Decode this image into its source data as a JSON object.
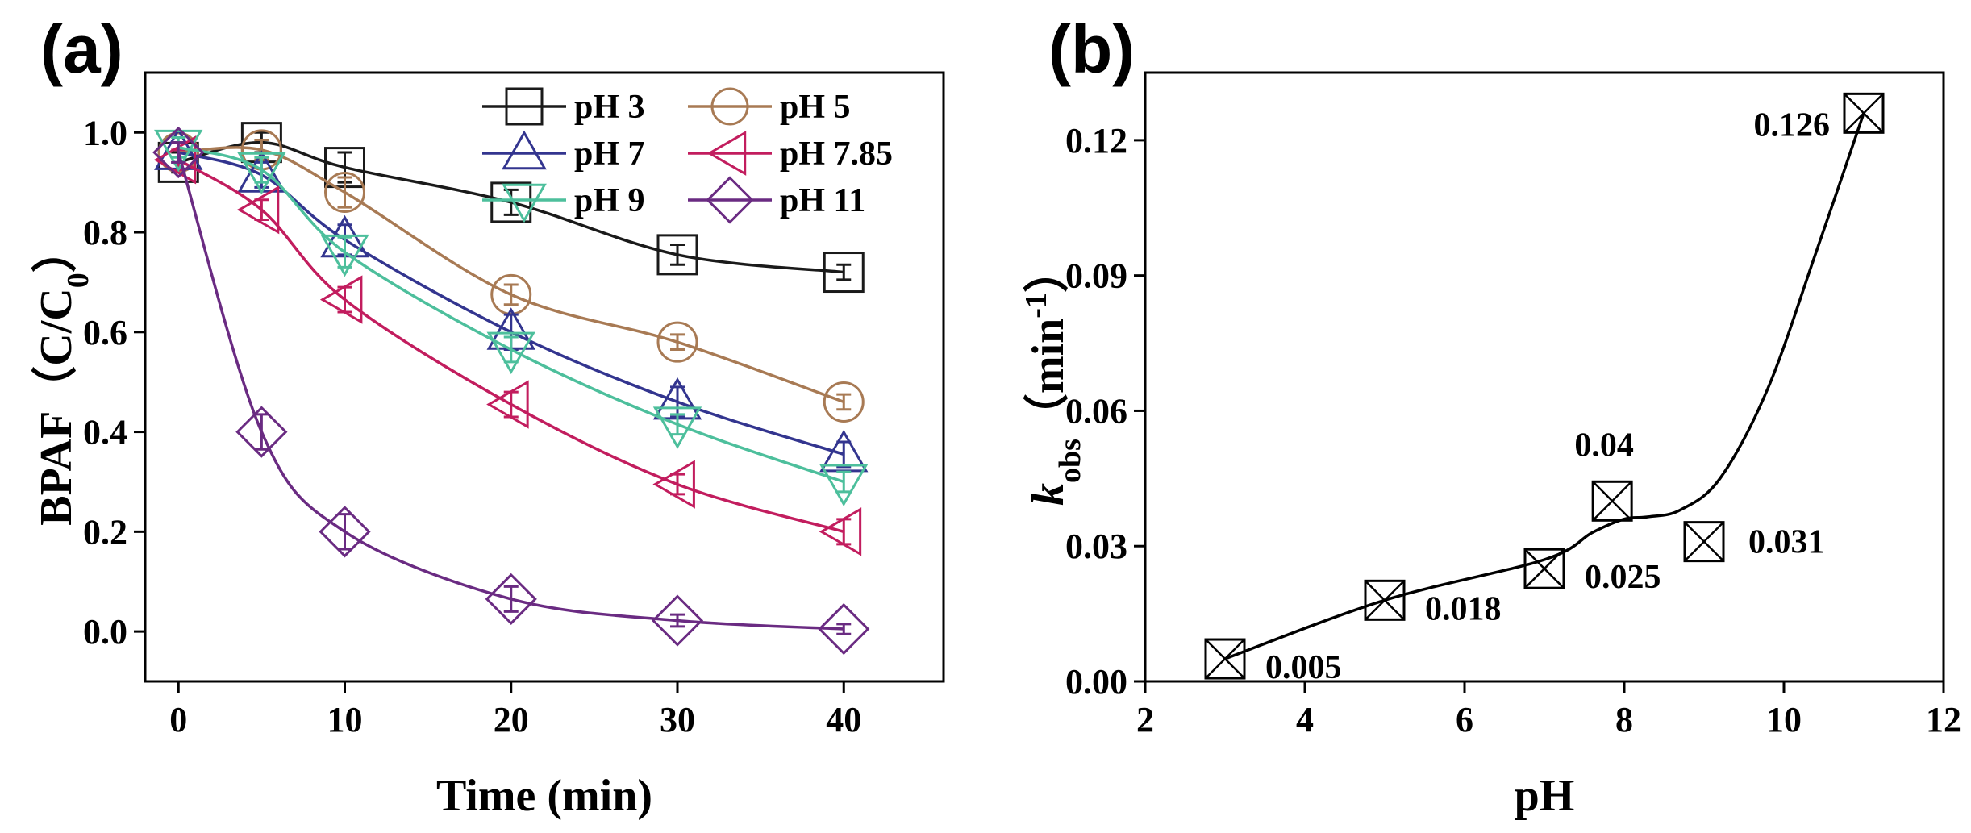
{
  "chart_data": [
    {
      "panel_label": "(a)",
      "type": "line",
      "xlabel": "Time (min)",
      "ylabel_main": "BPAF（C/C",
      "ylabel_sub": "0",
      "ylabel_tail": "）",
      "xlim": [
        -2,
        46
      ],
      "ylim": [
        -0.1,
        1.12
      ],
      "xticks": [
        0,
        10,
        20,
        30,
        40
      ],
      "xtick_labels": [
        "0",
        "10",
        "20",
        "30",
        "40"
      ],
      "yticks": [
        0.0,
        0.2,
        0.4,
        0.6,
        0.8,
        1.0
      ],
      "ytick_labels": [
        "0.0",
        "0.2",
        "0.4",
        "0.6",
        "0.8",
        "1.0"
      ],
      "legend_position": "top-right",
      "x": [
        0,
        5,
        10,
        20,
        30,
        40
      ],
      "series": [
        {
          "name": "pH 3",
          "marker": "square",
          "color": "#1a1a1a",
          "values": [
            0.94,
            0.98,
            0.93,
            0.86,
            0.755,
            0.72
          ],
          "errors": [
            0.02,
            0.02,
            0.03,
            0.025,
            0.02,
            0.015
          ]
        },
        {
          "name": "pH 5",
          "marker": "circle",
          "color": "#a87a54",
          "values": [
            0.96,
            0.965,
            0.88,
            0.675,
            0.58,
            0.46
          ],
          "errors": [
            0.02,
            0.02,
            0.03,
            0.02,
            0.015,
            0.015
          ]
        },
        {
          "name": "pH 7",
          "marker": "triangle-up",
          "color": "#33358f",
          "values": [
            0.96,
            0.915,
            0.785,
            0.6,
            0.46,
            0.355
          ],
          "errors": [
            0.02,
            0.025,
            0.03,
            0.035,
            0.03,
            0.025
          ]
        },
        {
          "name": "pH 7.85",
          "marker": "triangle-left",
          "color": "#c21d5e",
          "values": [
            0.945,
            0.845,
            0.665,
            0.455,
            0.295,
            0.2
          ],
          "errors": [
            0.02,
            0.02,
            0.025,
            0.025,
            0.02,
            0.025
          ]
        },
        {
          "name": "pH 9",
          "marker": "triangle-down",
          "color": "#4dbf9c",
          "values": [
            0.97,
            0.925,
            0.76,
            0.565,
            0.415,
            0.3
          ],
          "errors": [
            0.02,
            0.025,
            0.03,
            0.025,
            0.02,
            0.02
          ]
        },
        {
          "name": "pH 11",
          "marker": "diamond",
          "color": "#6a2b82",
          "values": [
            0.96,
            0.4,
            0.2,
            0.065,
            0.022,
            0.005
          ],
          "errors": [
            0.02,
            0.035,
            0.035,
            0.025,
            0.012,
            0.01
          ]
        }
      ]
    },
    {
      "panel_label": "(b)",
      "type": "scatter",
      "xlabel": "pH",
      "ylabel_main": "k",
      "ylabel_sub": "obs",
      "ylabel_tail": "（min",
      "ylabel_sup": "-1",
      "ylabel_close": "）",
      "xlim": [
        2,
        12
      ],
      "ylim": [
        0,
        0.135
      ],
      "xticks": [
        2,
        4,
        6,
        8,
        10,
        12
      ],
      "xtick_labels": [
        "2",
        "4",
        "6",
        "8",
        "10",
        "12"
      ],
      "yticks": [
        0.0,
        0.03,
        0.06,
        0.09,
        0.12
      ],
      "ytick_labels": [
        "0.00",
        "0.03",
        "0.06",
        "0.09",
        "0.12"
      ],
      "marker": "boxed-x",
      "x": [
        3,
        5,
        7,
        7.85,
        9,
        11
      ],
      "values": [
        0.005,
        0.018,
        0.025,
        0.04,
        0.031,
        0.126
      ],
      "point_labels": [
        "0.005",
        "0.018",
        "0.025",
        "0.04",
        "0.031",
        "0.126"
      ],
      "point_label_placement": [
        "below-right",
        "below-right",
        "below-right",
        "above",
        "right",
        "left"
      ],
      "curve": {
        "x": [
          3,
          5,
          7,
          7.6,
          8,
          8.3,
          8.7,
          9.2,
          9.8,
          10.4,
          11
        ],
        "y": [
          0.005,
          0.018,
          0.027,
          0.033,
          0.036,
          0.0365,
          0.038,
          0.045,
          0.065,
          0.095,
          0.126
        ]
      }
    }
  ]
}
